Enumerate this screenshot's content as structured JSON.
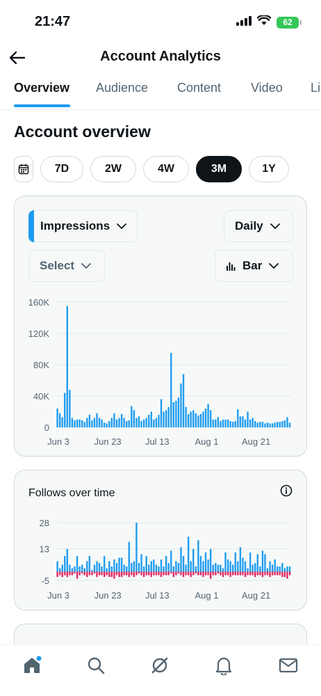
{
  "status_bar": {
    "time": "21:47",
    "battery": "62"
  },
  "header": {
    "title": "Account Analytics",
    "back_icon": "back-arrow-icon"
  },
  "tabs": [
    {
      "label": "Overview",
      "active": true
    },
    {
      "label": "Audience",
      "active": false
    },
    {
      "label": "Content",
      "active": false
    },
    {
      "label": "Video",
      "active": false
    },
    {
      "label": "Li",
      "active": false
    }
  ],
  "section_title": "Account overview",
  "ranges": [
    {
      "label": "7D",
      "active": false
    },
    {
      "label": "2W",
      "active": false
    },
    {
      "label": "4W",
      "active": false
    },
    {
      "label": "3M",
      "active": true
    },
    {
      "label": "1Y",
      "active": false
    }
  ],
  "controls": {
    "metric": "Impressions",
    "granularity": "Daily",
    "compare": "Select",
    "chart_type": "Bar"
  },
  "follows_card": {
    "title": "Follows over time"
  },
  "colors": {
    "accent": "#1d9bf0",
    "negative": "#e0245e",
    "dark": "#0f1419",
    "muted": "#536471"
  },
  "chart_data": [
    {
      "type": "bar",
      "title": "",
      "xlabel": "",
      "ylabel": "",
      "x_tick_labels": [
        "Jun 3",
        "Jun 23",
        "Jul 13",
        "Aug 1",
        "Aug 21"
      ],
      "y_tick_labels": [
        "160K",
        "120K",
        "80K",
        "40K",
        "0"
      ],
      "ylim": [
        0,
        160000
      ],
      "grid": true,
      "series": [
        {
          "values": [
            24000,
            18000,
            13000,
            44000,
            155000,
            48000,
            12000,
            9000,
            10000,
            10000,
            9000,
            7000,
            12000,
            16000,
            9000,
            12000,
            18000,
            12000,
            10000,
            6000,
            5000,
            8000,
            12000,
            18000,
            10000,
            12000,
            17000,
            12000,
            8000,
            9000,
            27000,
            22000,
            12000,
            14000,
            8000,
            10000,
            12000,
            16000,
            20000,
            10000,
            12000,
            16000,
            36000,
            20000,
            22000,
            26000,
            95000,
            32000,
            34000,
            38000,
            56000,
            68000,
            26000,
            17000,
            20000,
            22000,
            18000,
            15000,
            17000,
            20000,
            24000,
            30000,
            22000,
            10000,
            10000,
            13000,
            8000,
            10000,
            10000,
            10000,
            8000,
            7000,
            8000,
            23000,
            14000,
            14000,
            10000,
            20000,
            10000,
            12000,
            8000,
            6000,
            7000,
            7000,
            5000,
            6000,
            5000,
            5000,
            6000,
            7000,
            7000,
            8000,
            9000,
            13000,
            6000
          ]
        }
      ]
    },
    {
      "type": "bar",
      "title": "Follows over time",
      "x_tick_labels": [
        "Jun 3",
        "Jun 23",
        "Jul 13",
        "Aug 1",
        "Aug 21"
      ],
      "y_tick_labels": [
        "28",
        "13",
        "-5"
      ],
      "ylim": [
        -5,
        28
      ],
      "grid": true,
      "series": [
        {
          "name": "",
          "values": [
            6,
            2,
            4,
            9,
            13,
            4,
            2,
            3,
            9,
            3,
            4,
            2,
            6,
            9,
            1,
            4,
            6,
            5,
            3,
            9,
            2,
            6,
            3,
            7,
            5,
            8,
            8,
            4,
            3,
            17,
            5,
            6,
            28,
            5,
            10,
            3,
            9,
            4,
            6,
            7,
            4,
            3,
            7,
            3,
            9,
            5,
            12,
            3,
            6,
            5,
            14,
            9,
            4,
            20,
            6,
            13,
            3,
            18,
            9,
            6,
            11,
            7,
            13,
            4,
            5,
            4,
            4,
            2,
            11,
            7,
            6,
            4,
            11,
            6,
            14,
            8,
            6,
            2,
            11,
            4,
            5,
            10,
            3,
            12,
            10,
            2,
            6,
            4,
            7,
            3,
            3,
            5,
            2,
            3,
            3
          ]
        },
        {
          "name": "",
          "values": [
            -3,
            -2,
            -3,
            -2,
            -3,
            -2,
            -2,
            -1,
            -4,
            -2,
            -1,
            -2,
            -3,
            -2,
            -2,
            -1,
            -3,
            -2,
            -2,
            -3,
            -2,
            -3,
            -3,
            -4,
            -2,
            -3,
            -3,
            -2,
            -2,
            -3,
            -2,
            -3,
            -2,
            -1,
            -2,
            -3,
            -2,
            -2,
            -3,
            -2,
            -2,
            -2,
            -3,
            -2,
            -2,
            -2,
            -1,
            -3,
            -2,
            -1,
            -2,
            -3,
            -2,
            -2,
            -3,
            -2,
            -1,
            -2,
            -2,
            -3,
            -2,
            -2,
            -4,
            -2,
            -2,
            -1,
            -2,
            -3,
            -2,
            -2,
            -3,
            -2,
            -2,
            -2,
            -2,
            -2,
            -3,
            -2,
            -2,
            -2,
            -3,
            -2,
            -2,
            -3,
            -2,
            -2,
            -3,
            -2,
            -2,
            -2,
            -2,
            -3,
            -3,
            -4,
            -2
          ]
        }
      ]
    }
  ]
}
